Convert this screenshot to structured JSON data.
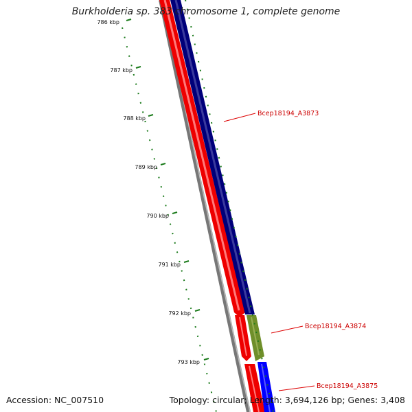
{
  "title": "Burkholderia sp. 383 chromosome 1, complete genome",
  "accession": "Accession: NC_007510",
  "summary": "Topology: circular; Length: 3,694,126 bp; Genes: 3,408",
  "scale": {
    "unit": "kbp",
    "ticks": [
      "786 kbp",
      "787 kbp",
      "788 kbp",
      "789 kbp",
      "790 kbp",
      "791 kbp",
      "792 kbp",
      "793 kbp"
    ]
  },
  "genes": [
    {
      "label": "Bcep18194_A3873"
    },
    {
      "label": "Bcep18194_A3874"
    },
    {
      "label": "Bcep18194_A3875"
    }
  ],
  "colors": {
    "backbone": "#777777",
    "forward_track": "#ee0000",
    "reverse_track": "#00007a",
    "gene_3874": "#6f8f2a",
    "gene_3875": "#0000ff",
    "tick_marks": "#1a7a1a",
    "label_line": "#dd0000"
  }
}
